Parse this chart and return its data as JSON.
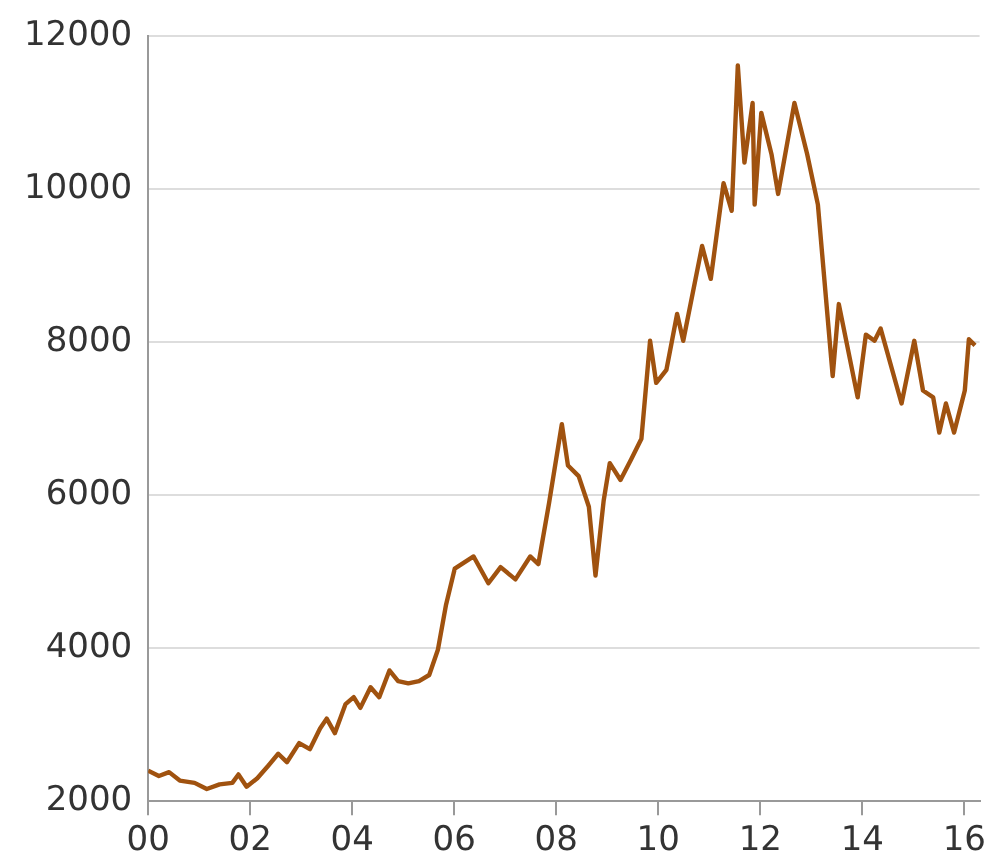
{
  "chart_data": {
    "type": "line",
    "x": [
      0,
      0.21,
      0.41,
      0.62,
      0.91,
      1.15,
      1.4,
      1.65,
      1.77,
      1.93,
      2.14,
      2.35,
      2.55,
      2.72,
      2.96,
      3.17,
      3.37,
      3.5,
      3.66,
      3.87,
      4.03,
      4.16,
      4.36,
      4.53,
      4.73,
      4.9,
      5.1,
      5.31,
      5.51,
      5.68,
      5.84,
      6.01,
      6.38,
      6.67,
      6.91,
      7.2,
      7.49,
      7.65,
      7.86,
      8.11,
      8.23,
      8.44,
      8.64,
      8.77,
      8.93,
      9.05,
      9.26,
      9.47,
      9.67,
      9.84,
      9.96,
      10.16,
      10.37,
      10.49,
      10.86,
      11.03,
      11.28,
      11.44,
      11.56,
      11.69,
      11.85,
      11.89,
      12.02,
      12.22,
      12.35,
      12.67,
      12.92,
      13.13,
      13.42,
      13.54,
      13.91,
      14.07,
      14.24,
      14.36,
      14.77,
      15.02,
      15.19,
      15.39,
      15.51,
      15.64,
      15.8,
      16.01,
      16.09,
      16.21
    ],
    "series": [
      {
        "color": "#a0520f",
        "values": [
          2400,
          2330,
          2380,
          2270,
          2240,
          2160,
          2220,
          2240,
          2350,
          2190,
          2300,
          2460,
          2620,
          2510,
          2760,
          2680,
          2950,
          3080,
          2890,
          3270,
          3360,
          3220,
          3490,
          3360,
          3710,
          3570,
          3540,
          3570,
          3650,
          3980,
          4570,
          5040,
          5200,
          4850,
          5060,
          4900,
          5200,
          5100,
          5900,
          6930,
          6390,
          6250,
          5850,
          4950,
          5930,
          6420,
          6200,
          6470,
          6740,
          8020,
          7470,
          7640,
          8370,
          8020,
          9260,
          8830,
          10080,
          9720,
          11620,
          10350,
          11130,
          9800,
          11000,
          10460,
          9940,
          11130,
          10460,
          9800,
          7560,
          8500,
          7280,
          8100,
          8020,
          8180,
          7200,
          8020,
          7370,
          7280,
          6820,
          7200,
          6820,
          7370,
          8040,
          7960
        ]
      }
    ],
    "xlim": [
      0,
      16.3
    ],
    "xticks": [
      {
        "value": 0,
        "label": "00"
      },
      {
        "value": 2,
        "label": "02"
      },
      {
        "value": 4,
        "label": "04"
      },
      {
        "value": 6,
        "label": "06"
      },
      {
        "value": 8,
        "label": "08"
      },
      {
        "value": 10,
        "label": "10"
      },
      {
        "value": 12,
        "label": "12"
      },
      {
        "value": 14,
        "label": "14"
      },
      {
        "value": 16,
        "label": "16"
      }
    ],
    "ylim": [
      2000,
      12000
    ],
    "yticks": [
      2000,
      4000,
      6000,
      8000,
      10000,
      12000
    ],
    "grid": "y",
    "legend": false,
    "marker": "none",
    "line_style": "solid"
  }
}
